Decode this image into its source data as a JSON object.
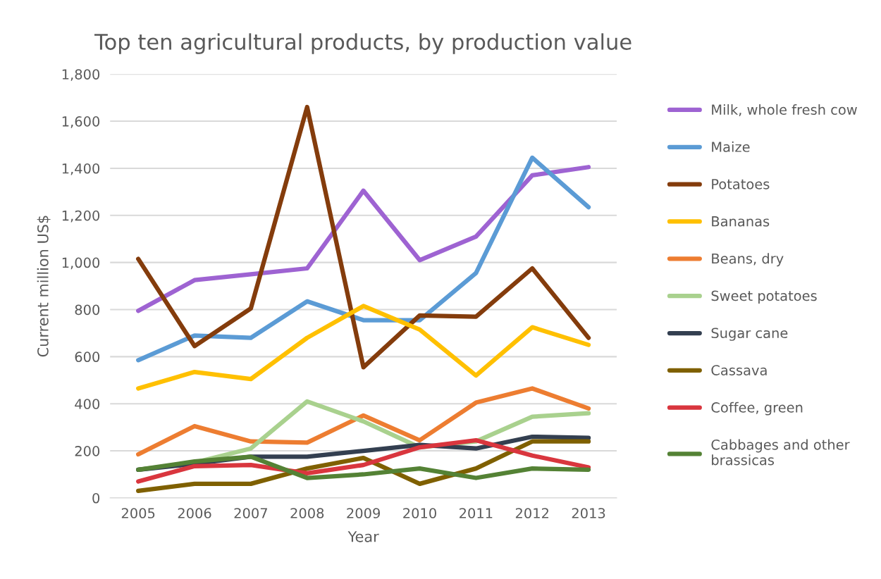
{
  "chart_data": {
    "type": "line",
    "title": "Top ten agricultural products, by production value",
    "xlabel": "Year",
    "ylabel": "Current million US$",
    "categories": [
      "2005",
      "2006",
      "2007",
      "2008",
      "2009",
      "2010",
      "2011",
      "2012",
      "2013"
    ],
    "series": [
      {
        "name": "Milk, whole fresh cow",
        "color": "#9e63d2",
        "values": [
          795,
          925,
          950,
          975,
          1305,
          1010,
          1110,
          1370,
          1405
        ]
      },
      {
        "name": "Maize",
        "color": "#5b9bd5",
        "values": [
          585,
          690,
          680,
          835,
          755,
          755,
          955,
          1445,
          1235
        ]
      },
      {
        "name": "Potatoes",
        "color": "#843c0c",
        "values": [
          1015,
          645,
          805,
          1660,
          555,
          775,
          770,
          975,
          680
        ]
      },
      {
        "name": "Bananas",
        "color": "#ffc000",
        "values": [
          465,
          535,
          505,
          680,
          815,
          715,
          520,
          725,
          650
        ]
      },
      {
        "name": "Beans, dry",
        "color": "#ed7d31",
        "values": [
          185,
          305,
          240,
          235,
          350,
          245,
          405,
          465,
          380
        ]
      },
      {
        "name": "Sweet potatoes",
        "color": "#a9d18e",
        "values": [
          120,
          150,
          210,
          410,
          325,
          215,
          240,
          345,
          360
        ]
      },
      {
        "name": "Sugar cane",
        "color": "#333f50",
        "values": [
          120,
          145,
          175,
          175,
          200,
          225,
          210,
          260,
          255
        ]
      },
      {
        "name": "Cassava",
        "color": "#7f6000",
        "values": [
          30,
          60,
          60,
          125,
          170,
          60,
          125,
          240,
          240
        ]
      },
      {
        "name": "Coffee, green",
        "color": "#d9363e",
        "values": [
          70,
          135,
          140,
          105,
          140,
          215,
          245,
          180,
          130
        ]
      },
      {
        "name": "Cabbages and other\nbrassicas",
        "color": "#548235",
        "values": [
          120,
          155,
          175,
          85,
          100,
          125,
          85,
          125,
          120
        ]
      }
    ],
    "ylim": [
      0,
      1800
    ],
    "yticks": [
      0,
      {
        "value": 200,
        "label": "200"
      },
      {
        "value": 400,
        "label": "400"
      },
      {
        "value": 600,
        "label": "600"
      },
      {
        "value": 800,
        "label": "800"
      },
      {
        "value": 1000,
        "label": "1,000"
      },
      {
        "value": 1200,
        "label": "1,200"
      },
      {
        "value": 1400,
        "label": "1,400"
      },
      {
        "value": 1600,
        "label": "1,600"
      },
      {
        "value": 1800,
        "label": "1,800"
      }
    ],
    "grid": "y",
    "legend": "right",
    "marker": "none",
    "line_style": "solid"
  }
}
